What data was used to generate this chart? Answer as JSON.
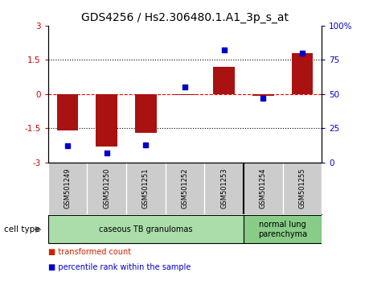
{
  "title": "GDS4256 / Hs2.306480.1.A1_3p_s_at",
  "samples": [
    "GSM501249",
    "GSM501250",
    "GSM501251",
    "GSM501252",
    "GSM501253",
    "GSM501254",
    "GSM501255"
  ],
  "transformed_counts": [
    -1.6,
    -2.3,
    -1.7,
    -0.05,
    1.2,
    -0.08,
    1.8
  ],
  "percentile_ranks": [
    12,
    7,
    13,
    55,
    82,
    47,
    80
  ],
  "bar_color": "#aa1111",
  "dot_color": "#0000cc",
  "ylim_left": [
    -3,
    3
  ],
  "ylim_right": [
    0,
    100
  ],
  "yticks_left": [
    -3,
    -1.5,
    0,
    1.5,
    3
  ],
  "ytick_labels_left": [
    "-3",
    "-1.5",
    "0",
    "1.5",
    "3"
  ],
  "yticks_right": [
    0,
    25,
    50,
    75,
    100
  ],
  "ytick_labels_right": [
    "0",
    "25",
    "50",
    "75",
    "100%"
  ],
  "hlines": [
    -1.5,
    0,
    1.5
  ],
  "hline_styles": [
    "dotted",
    "dashed",
    "dotted"
  ],
  "hline_colors": [
    "black",
    "red",
    "black"
  ],
  "cell_type_groups": [
    {
      "label": "caseous TB granulomas",
      "indices": [
        0,
        1,
        2,
        3,
        4
      ],
      "color": "#aaddaa"
    },
    {
      "label": "normal lung\nparenchyma",
      "indices": [
        5,
        6
      ],
      "color": "#88cc88"
    }
  ],
  "legend_items": [
    {
      "color": "#cc2200",
      "label": "transformed count"
    },
    {
      "color": "#0000cc",
      "label": "percentile rank within the sample"
    }
  ],
  "cell_type_label": "cell type",
  "background_color": "#ffffff",
  "plot_bg_color": "#ffffff",
  "title_fontsize": 10,
  "tick_fontsize": 7.5,
  "label_fontsize": 7.5,
  "sample_bg_color": "#cccccc",
  "sample_divider_color": "#ffffff",
  "group_divider_color": "#000000"
}
